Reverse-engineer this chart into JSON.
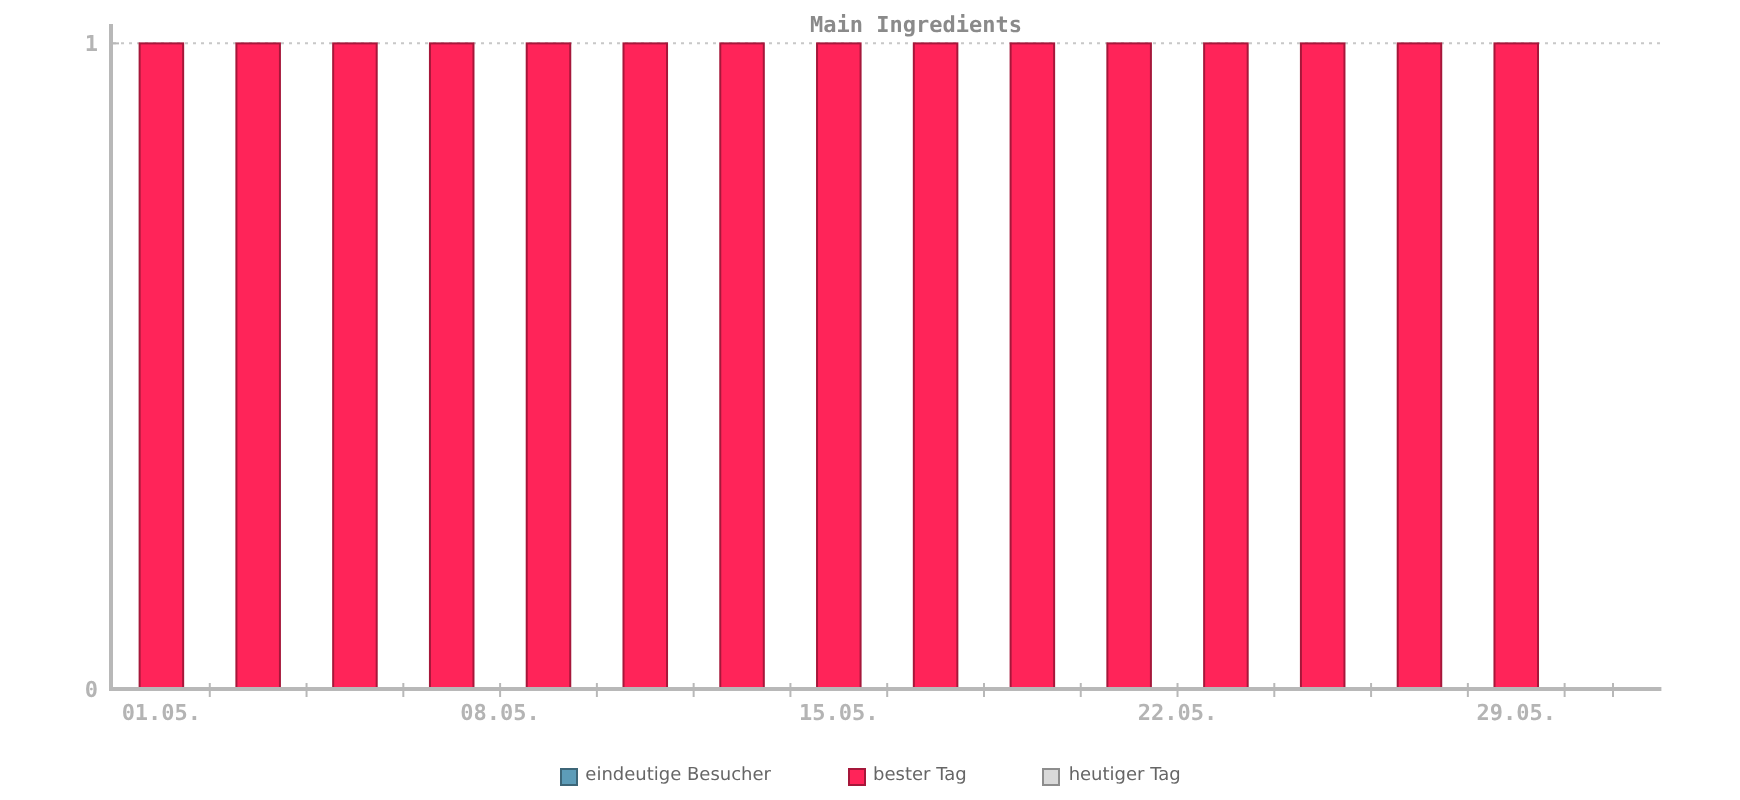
{
  "chart_data": {
    "type": "bar",
    "title": "Main Ingredients",
    "x": [
      "--05-01",
      "--05-03",
      "--05-05",
      "--05-07",
      "--05-09",
      "--05-11",
      "--05-13",
      "--05-15",
      "--05-17",
      "--05-19",
      "--05-21",
      "--05-23",
      "--05-25",
      "--05-27",
      "--05-29"
    ],
    "series": [
      {
        "name": "eindeutige Besucher",
        "color": "#5d9cb8",
        "values": [
          null,
          null,
          null,
          null,
          null,
          null,
          null,
          null,
          null,
          null,
          null,
          null,
          null,
          null,
          null
        ]
      },
      {
        "name": "bester Tag",
        "color": "#ff2459",
        "values": [
          1,
          1,
          1,
          1,
          1,
          1,
          1,
          1,
          1,
          1,
          1,
          1,
          1,
          1,
          1
        ]
      },
      {
        "name": "heutiger Tag",
        "color": "#d9d9d9",
        "values": [
          null,
          null,
          null,
          null,
          null,
          null,
          null,
          null,
          null,
          null,
          null,
          null,
          null,
          null,
          null
        ]
      }
    ],
    "xlim": [
      "--04-30",
      "--06-01"
    ],
    "xticks": [
      {
        "value": "--05-01",
        "label": "01.05."
      },
      {
        "value": "--05-08",
        "label": "08.05."
      },
      {
        "value": "--05-15",
        "label": "15.05."
      },
      {
        "value": "--05-22",
        "label": "22.05."
      },
      {
        "value": "--05-29",
        "label": "29.05."
      },
      {
        "value": "--05-02",
        "label": null
      },
      {
        "value": "--05-04",
        "label": null
      },
      {
        "value": "--05-06",
        "label": null
      },
      {
        "value": "--05-08",
        "label": null
      },
      {
        "value": "--05-10",
        "label": null
      },
      {
        "value": "--05-12",
        "label": null
      },
      {
        "value": "--05-14",
        "label": null
      },
      {
        "value": "--05-16",
        "label": null
      },
      {
        "value": "--05-18",
        "label": null
      },
      {
        "value": "--05-20",
        "label": null
      },
      {
        "value": "--05-22",
        "label": null
      },
      {
        "value": "--05-24",
        "label": null
      },
      {
        "value": "--05-26",
        "label": null
      },
      {
        "value": "--05-28",
        "label": null
      },
      {
        "value": "--05-30",
        "label": null
      },
      {
        "value": "--05-31",
        "label": null
      }
    ],
    "ylim": [
      0,
      1.03
    ],
    "yticks": [
      0,
      1
    ],
    "grid": "y",
    "legend": "bottom"
  }
}
